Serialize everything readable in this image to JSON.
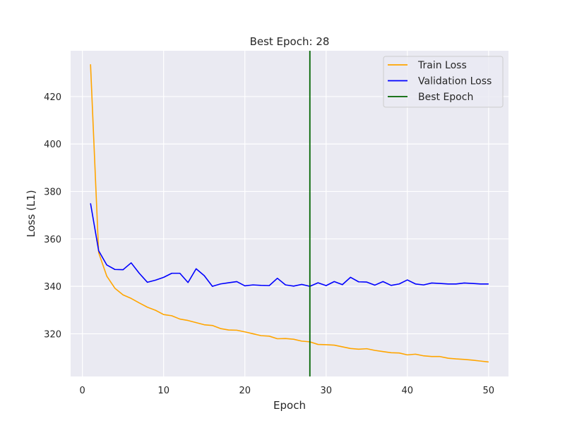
{
  "chart_data": {
    "type": "line",
    "title": "Best Epoch: 28",
    "xlabel": "Epoch",
    "ylabel": "Loss (L1)",
    "xlim": [
      -1.45,
      52.45
    ],
    "ylim": [
      302.0,
      439.3
    ],
    "xticks": [
      0,
      10,
      20,
      30,
      40,
      50
    ],
    "yticks": [
      320,
      340,
      360,
      380,
      400,
      420
    ],
    "grid": true,
    "legend_position": "top-right",
    "x": [
      1,
      2,
      3,
      4,
      5,
      6,
      7,
      8,
      9,
      10,
      11,
      12,
      13,
      14,
      15,
      16,
      17,
      18,
      19,
      20,
      21,
      22,
      23,
      24,
      25,
      26,
      27,
      28,
      29,
      30,
      31,
      32,
      33,
      34,
      35,
      36,
      37,
      38,
      39,
      40,
      41,
      42,
      43,
      44,
      45,
      46,
      47,
      48,
      49,
      50
    ],
    "series": [
      {
        "name": "Train Loss",
        "color": "#ffa500",
        "values": [
          433.6,
          354.2,
          344.3,
          339.2,
          336.4,
          334.9,
          333.0,
          331.2,
          329.9,
          328.1,
          327.6,
          326.2,
          325.6,
          324.7,
          323.8,
          323.5,
          322.2,
          321.6,
          321.5,
          320.8,
          320.0,
          319.2,
          319.0,
          317.9,
          318.0,
          317.7,
          316.9,
          316.6,
          315.5,
          315.4,
          315.2,
          314.5,
          313.8,
          313.5,
          313.7,
          313.0,
          312.5,
          312.0,
          311.9,
          311.1,
          311.4,
          310.7,
          310.4,
          310.4,
          309.7,
          309.4,
          309.2,
          308.9,
          308.5,
          308.1
        ]
      },
      {
        "name": "Validation Loss",
        "color": "#0000ff",
        "values": [
          375.0,
          355.0,
          349.0,
          347.1,
          347.0,
          349.9,
          345.5,
          341.7,
          342.6,
          343.8,
          345.5,
          345.5,
          341.6,
          347.4,
          344.5,
          340.0,
          341.0,
          341.5,
          342.0,
          340.2,
          340.6,
          340.4,
          340.3,
          343.4,
          340.6,
          340.1,
          340.8,
          340.0,
          341.5,
          340.3,
          342.0,
          340.7,
          343.8,
          341.9,
          341.8,
          340.5,
          342.0,
          340.4,
          341.0,
          342.7,
          341.0,
          340.6,
          341.4,
          341.2,
          341.0,
          341.0,
          341.4,
          341.2,
          341.0,
          341.0
        ]
      }
    ],
    "vlines": [
      {
        "name": "Best Epoch",
        "x": 28,
        "color": "#006400"
      }
    ]
  }
}
